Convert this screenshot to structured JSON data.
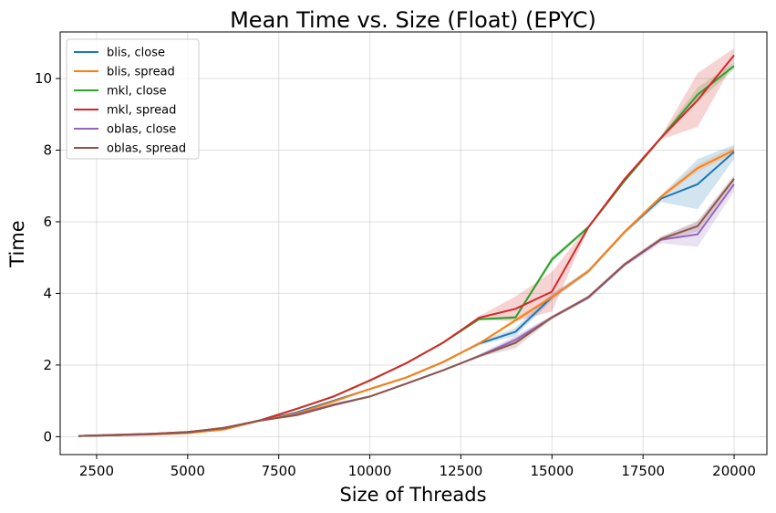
{
  "chart_data": {
    "type": "line",
    "title": "Mean Time vs. Size (Float) (EPYC)",
    "xlabel": "Size of Threads",
    "ylabel": "Time",
    "xlim": [
      1500,
      20900
    ],
    "ylim": [
      -0.5,
      11.3
    ],
    "xticks": [
      2500,
      5000,
      7500,
      10000,
      12500,
      15000,
      17500,
      20000
    ],
    "yticks": [
      0,
      2,
      4,
      6,
      8,
      10
    ],
    "grid": true,
    "legend_position": "top-left",
    "x": [
      2000,
      3000,
      4000,
      5000,
      6000,
      7000,
      8000,
      9000,
      10000,
      11000,
      12000,
      13000,
      14000,
      15000,
      16000,
      17000,
      18000,
      19000,
      20000
    ],
    "series": [
      {
        "name": "blis, close",
        "color": "#1f77b4",
        "values": [
          0.02,
          0.04,
          0.07,
          0.12,
          0.22,
          0.45,
          0.68,
          1.0,
          1.33,
          1.65,
          2.08,
          2.6,
          2.93,
          3.9,
          4.62,
          5.72,
          6.65,
          7.05,
          7.95
        ],
        "band": [
          0,
          0,
          0,
          0,
          0,
          0,
          0,
          0,
          0,
          0,
          0,
          0.05,
          0.12,
          0.1,
          0.05,
          0.05,
          0.1,
          0.7,
          0.2
        ]
      },
      {
        "name": "blis, spread",
        "color": "#ff7f0e",
        "values": [
          0.02,
          0.04,
          0.06,
          0.1,
          0.2,
          0.45,
          0.65,
          0.98,
          1.33,
          1.65,
          2.08,
          2.6,
          3.25,
          3.9,
          4.62,
          5.72,
          6.7,
          7.5,
          8.0
        ],
        "band": [
          0,
          0,
          0,
          0,
          0,
          0,
          0,
          0,
          0,
          0,
          0,
          0.03,
          0.05,
          0.05,
          0.05,
          0.05,
          0.05,
          0.1,
          0.1
        ]
      },
      {
        "name": "mkl, close",
        "color": "#2ca02c",
        "values": [
          0.02,
          0.05,
          0.08,
          0.13,
          0.24,
          0.46,
          0.78,
          1.12,
          1.57,
          2.05,
          2.62,
          3.28,
          3.33,
          4.95,
          5.85,
          7.15,
          8.35,
          9.55,
          10.35
        ],
        "band": [
          0,
          0,
          0,
          0,
          0,
          0,
          0,
          0,
          0,
          0,
          0,
          0.03,
          0.05,
          0.08,
          0.05,
          0.05,
          0.05,
          0.2,
          0.1
        ]
      },
      {
        "name": "mkl, spread",
        "color": "#d62728",
        "values": [
          0.02,
          0.05,
          0.08,
          0.13,
          0.24,
          0.46,
          0.78,
          1.12,
          1.57,
          2.05,
          2.62,
          3.32,
          3.57,
          4.05,
          5.85,
          7.2,
          8.35,
          9.4,
          10.65
        ],
        "band": [
          0,
          0,
          0,
          0,
          0,
          0,
          0,
          0,
          0,
          0,
          0,
          0.05,
          0.35,
          0.55,
          0.05,
          0.05,
          0.05,
          0.75,
          0.2
        ]
      },
      {
        "name": "oblas, close",
        "color": "#9467bd",
        "values": [
          0.02,
          0.04,
          0.07,
          0.12,
          0.25,
          0.45,
          0.62,
          0.9,
          1.12,
          1.48,
          1.85,
          2.25,
          2.7,
          3.33,
          3.88,
          4.8,
          5.5,
          5.65,
          7.05
        ],
        "band": [
          0,
          0,
          0,
          0,
          0,
          0,
          0,
          0,
          0,
          0,
          0,
          0.05,
          0.12,
          0.05,
          0.05,
          0.05,
          0.1,
          0.35,
          0.2
        ]
      },
      {
        "name": "oblas, spread",
        "color": "#8c564b",
        "values": [
          0.02,
          0.04,
          0.07,
          0.12,
          0.25,
          0.45,
          0.6,
          0.88,
          1.12,
          1.48,
          1.85,
          2.25,
          2.62,
          3.33,
          3.9,
          4.82,
          5.52,
          5.88,
          7.2
        ],
        "band": [
          0,
          0,
          0,
          0,
          0,
          0,
          0,
          0,
          0,
          0,
          0,
          0.03,
          0.15,
          0.05,
          0.05,
          0.05,
          0.05,
          0.15,
          0.1
        ]
      }
    ]
  }
}
